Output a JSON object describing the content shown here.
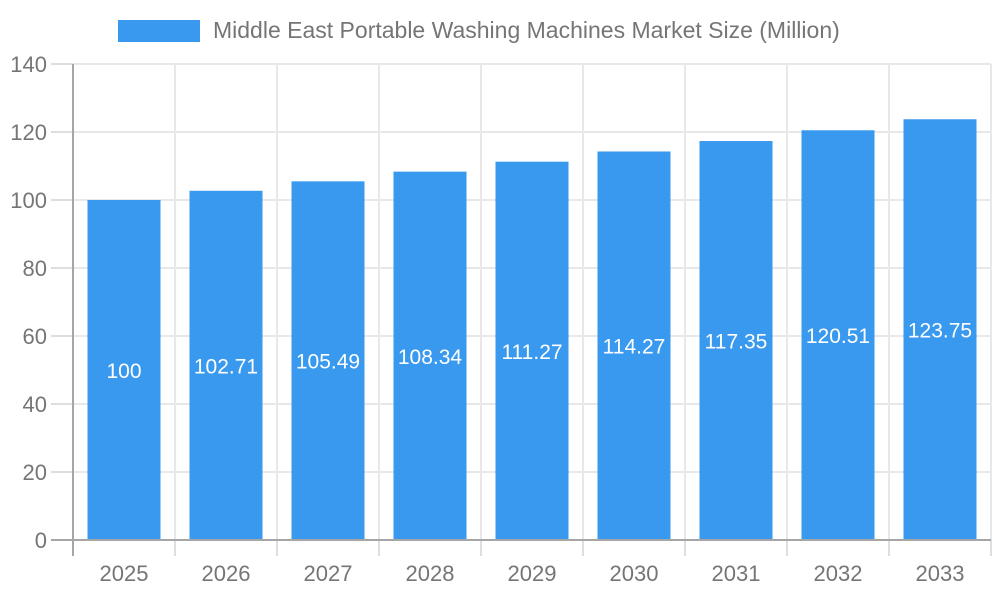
{
  "chart_data": {
    "type": "bar",
    "title": "Middle East Portable Washing Machines Market Size (Million)",
    "categories": [
      "2025",
      "2026",
      "2027",
      "2028",
      "2029",
      "2030",
      "2031",
      "2032",
      "2033"
    ],
    "series": [
      {
        "name": "Middle East Portable Washing Machines Market Size (Million)",
        "values": [
          100,
          102.71,
          105.49,
          108.34,
          111.27,
          114.27,
          117.35,
          120.51,
          123.75
        ]
      }
    ],
    "values": [
      100,
      102.71,
      105.49,
      108.34,
      111.27,
      114.27,
      117.35,
      120.51,
      123.75
    ],
    "value_labels": [
      "100",
      "102.71",
      "105.49",
      "108.34",
      "111.27",
      "114.27",
      "117.35",
      "120.51",
      "123.75"
    ],
    "xlabel": "",
    "ylabel": "",
    "ylim": [
      0,
      140
    ],
    "ytick_step": 20,
    "ytick_labels": [
      "0",
      "20",
      "40",
      "60",
      "80",
      "100",
      "120",
      "140"
    ],
    "grid": true,
    "legend_position": "top",
    "colors": {
      "bar": "#3999EE",
      "axis": "#a6a6a6",
      "gridline": "#e8e8e8",
      "tick": "#dedede",
      "tick_label": "#757575",
      "title": "#757575",
      "value_label": "#ffffff",
      "background": "#ffffff"
    }
  }
}
